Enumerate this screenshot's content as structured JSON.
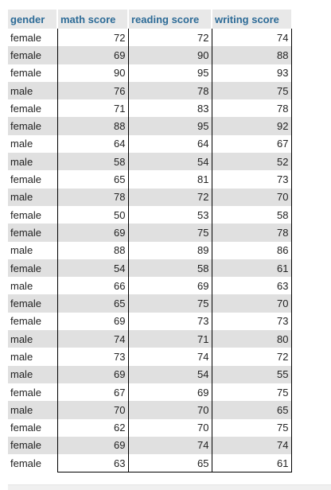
{
  "table": {
    "columns": [
      "gender",
      "math score",
      "reading score",
      "writing score"
    ],
    "rows": [
      [
        "female",
        "72",
        "72",
        "74"
      ],
      [
        "female",
        "69",
        "90",
        "88"
      ],
      [
        "female",
        "90",
        "95",
        "93"
      ],
      [
        "male",
        "76",
        "78",
        "75"
      ],
      [
        "female",
        "71",
        "83",
        "78"
      ],
      [
        "female",
        "88",
        "95",
        "92"
      ],
      [
        "male",
        "64",
        "64",
        "67"
      ],
      [
        "male",
        "58",
        "54",
        "52"
      ],
      [
        "female",
        "65",
        "81",
        "73"
      ],
      [
        "male",
        "78",
        "72",
        "70"
      ],
      [
        "female",
        "50",
        "53",
        "58"
      ],
      [
        "female",
        "69",
        "75",
        "78"
      ],
      [
        "male",
        "88",
        "89",
        "86"
      ],
      [
        "female",
        "54",
        "58",
        "61"
      ],
      [
        "male",
        "66",
        "69",
        "63"
      ],
      [
        "female",
        "65",
        "75",
        "70"
      ],
      [
        "female",
        "69",
        "73",
        "73"
      ],
      [
        "male",
        "74",
        "71",
        "80"
      ],
      [
        "male",
        "73",
        "74",
        "72"
      ],
      [
        "male",
        "69",
        "54",
        "55"
      ],
      [
        "female",
        "67",
        "69",
        "75"
      ],
      [
        "male",
        "70",
        "70",
        "65"
      ],
      [
        "female",
        "62",
        "70",
        "75"
      ],
      [
        "female",
        "69",
        "74",
        "74"
      ],
      [
        "female",
        "63",
        "65",
        "61"
      ]
    ]
  },
  "colors": {
    "header_text": "#2d6b97",
    "header_bg": "#e8e8e8",
    "stripe_bg": "#e0e0e0"
  }
}
